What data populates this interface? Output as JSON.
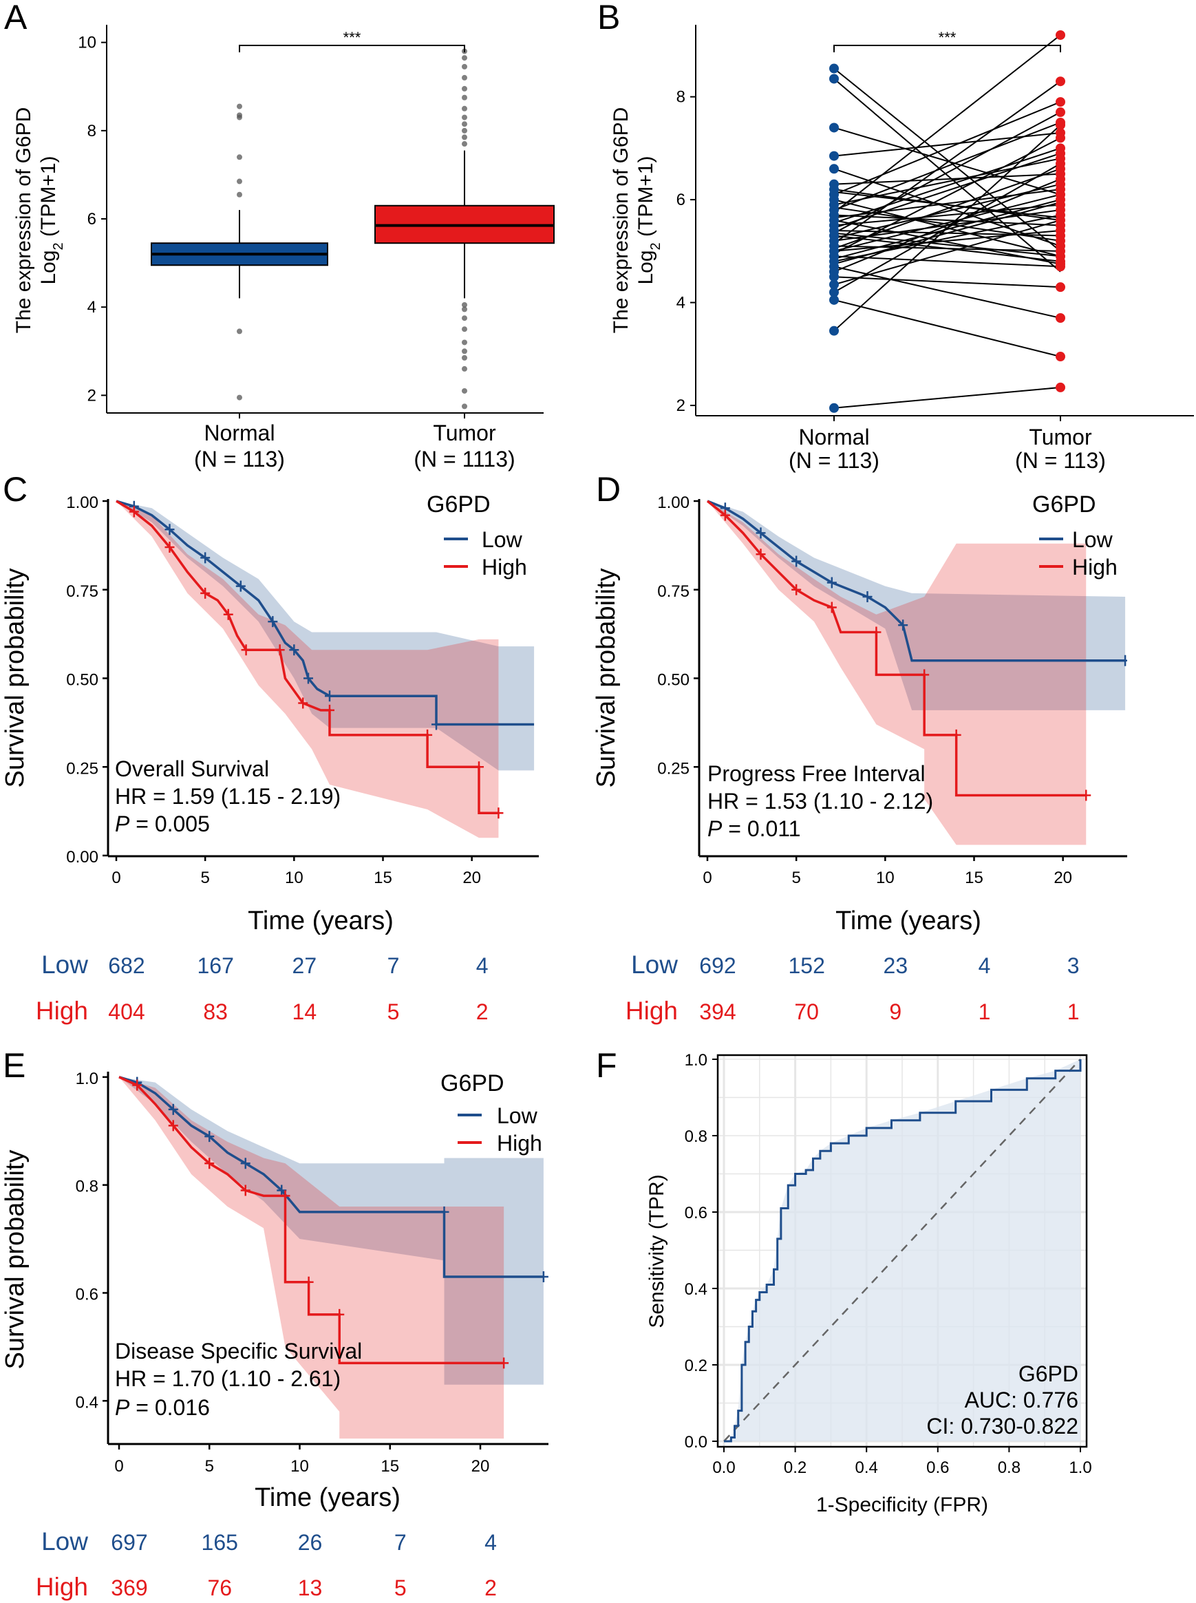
{
  "colors": {
    "normal_blue": "#0e4c92",
    "tumor_red": "#e41a1c",
    "low_blue": "#1f4e8c",
    "high_red": "#e41a1c",
    "roc_fill": "#dbe4ef",
    "axis": "#000000"
  },
  "panels": {
    "A": {
      "letter": "A"
    },
    "B": {
      "letter": "B"
    },
    "C": {
      "letter": "C"
    },
    "D": {
      "letter": "D"
    },
    "E": {
      "letter": "E"
    },
    "F": {
      "letter": "F"
    }
  },
  "chart_data": [
    {
      "id": "A",
      "type": "box",
      "ylabel_line1": "The expression of G6PD",
      "ylabel_line2": "Log2 (TPM+1)",
      "ylabel_line2_main": "Log",
      "ylabel_line2_sub": "2",
      "ylabel_line2_rest": " (TPM+1)",
      "ylim": [
        1.6,
        10.4
      ],
      "yticks": [
        "2",
        "4",
        "6",
        "8",
        "10"
      ],
      "significance": "***",
      "groups": [
        {
          "name": "Normal",
          "n_label": "(N = 113)",
          "q1": 4.95,
          "median": 5.2,
          "q3": 5.45,
          "whisker_low": 4.2,
          "whisker_high": 6.2,
          "outliers": [
            1.95,
            3.45,
            6.55,
            6.85,
            7.4,
            8.3,
            8.35,
            8.55
          ]
        },
        {
          "name": "Tumor",
          "n_label": "(N = 1113)",
          "q1": 5.45,
          "median": 5.85,
          "q3": 6.3,
          "whisker_low": 4.2,
          "whisker_high": 7.55,
          "outliers": [
            1.75,
            2.1,
            2.6,
            2.85,
            3.0,
            3.2,
            3.5,
            3.75,
            3.95,
            4.05,
            7.7,
            7.85,
            8.0,
            8.15,
            8.3,
            8.5,
            8.75,
            8.95,
            9.2,
            9.45,
            9.65,
            9.8
          ]
        }
      ]
    },
    {
      "id": "B",
      "type": "paired",
      "ylabel_line1": "The expression of G6PD",
      "ylabel_line2_main": "Log",
      "ylabel_line2_sub": "2",
      "ylabel_line2_rest": " (TPM+1)",
      "ylim": [
        1.8,
        9.4
      ],
      "yticks": [
        "2",
        "4",
        "6",
        "8"
      ],
      "significance": "***",
      "groups": [
        {
          "name": "Normal",
          "n_label": "(N = 113)"
        },
        {
          "name": "Tumor",
          "n_label": "(N = 113)"
        }
      ],
      "pairs": [
        [
          8.55,
          5.0
        ],
        [
          8.35,
          4.6
        ],
        [
          7.4,
          6.1
        ],
        [
          6.85,
          7.3
        ],
        [
          6.6,
          5.1
        ],
        [
          6.3,
          6.5
        ],
        [
          6.2,
          5.6
        ],
        [
          6.1,
          7.9
        ],
        [
          6.0,
          4.9
        ],
        [
          5.9,
          6.8
        ],
        [
          5.85,
          5.2
        ],
        [
          5.8,
          7.5
        ],
        [
          5.7,
          5.5
        ],
        [
          5.65,
          6.2
        ],
        [
          5.6,
          4.75
        ],
        [
          5.55,
          7.0
        ],
        [
          5.5,
          5.9
        ],
        [
          5.45,
          6.9
        ],
        [
          5.4,
          5.3
        ],
        [
          5.35,
          7.7
        ],
        [
          5.3,
          4.8
        ],
        [
          5.25,
          6.3
        ],
        [
          5.2,
          5.8
        ],
        [
          5.15,
          8.3
        ],
        [
          5.1,
          5.0
        ],
        [
          5.05,
          6.6
        ],
        [
          5.0,
          5.4
        ],
        [
          4.95,
          7.2
        ],
        [
          4.9,
          4.7
        ],
        [
          4.85,
          6.0
        ],
        [
          4.8,
          5.7
        ],
        [
          4.7,
          3.7
        ],
        [
          4.6,
          6.4
        ],
        [
          4.5,
          4.3
        ],
        [
          4.35,
          5.6
        ],
        [
          4.2,
          6.7
        ],
        [
          4.05,
          2.95
        ],
        [
          3.45,
          7.45
        ],
        [
          1.95,
          2.35
        ],
        [
          5.75,
          9.2
        ],
        [
          5.35,
          4.9
        ],
        [
          5.0,
          6.1
        ],
        [
          6.15,
          5.65
        ],
        [
          4.75,
          5.95
        ]
      ],
      "left_points": [
        8.55,
        8.35,
        7.4,
        6.85,
        6.6,
        6.3,
        6.2,
        6.1,
        6.0,
        5.9,
        5.8,
        5.7,
        5.6,
        5.5,
        5.4,
        5.3,
        5.2,
        5.1,
        5.0,
        4.9,
        4.8,
        4.7,
        4.6,
        4.5,
        4.35,
        4.2,
        4.05,
        3.45,
        1.95
      ],
      "right_points": [
        9.2,
        8.3,
        7.9,
        7.7,
        7.5,
        7.45,
        7.3,
        7.2,
        7.0,
        6.9,
        6.8,
        6.7,
        6.6,
        6.5,
        6.4,
        6.3,
        6.2,
        6.1,
        6.0,
        5.9,
        5.8,
        5.7,
        5.6,
        5.5,
        5.4,
        5.3,
        5.2,
        5.1,
        5.0,
        4.9,
        4.8,
        4.75,
        4.7,
        4.3,
        3.7,
        2.95,
        2.35
      ]
    },
    {
      "id": "C",
      "type": "km",
      "xlabel": "Time (years)",
      "ylabel": "Survival probability",
      "xlim": [
        0,
        24
      ],
      "ylim": [
        0,
        1
      ],
      "xticks": [
        "0",
        "5",
        "10",
        "15",
        "20"
      ],
      "yticks": [
        "0.00",
        "0.25",
        "0.50",
        "0.75",
        "1.00"
      ],
      "legend_title": "G6PD",
      "legend_items": [
        "Low",
        "High"
      ],
      "annotation": {
        "title": "Overall Survival",
        "hr": "HR = 1.59 (1.15 -  2.19)",
        "p_label": "P",
        "p_value": " = 0.005"
      },
      "low_curve": [
        [
          0,
          1
        ],
        [
          1,
          0.985
        ],
        [
          2,
          0.96
        ],
        [
          3,
          0.92
        ],
        [
          4,
          0.875
        ],
        [
          5,
          0.84
        ],
        [
          6,
          0.8
        ],
        [
          7,
          0.76
        ],
        [
          8,
          0.72
        ],
        [
          8.8,
          0.66
        ],
        [
          9.5,
          0.6
        ],
        [
          10,
          0.58
        ],
        [
          10.5,
          0.55
        ],
        [
          10.8,
          0.5
        ],
        [
          11.3,
          0.47
        ],
        [
          12,
          0.45
        ],
        [
          18,
          0.45
        ],
        [
          18,
          0.37
        ],
        [
          23.5,
          0.37
        ]
      ],
      "high_curve": [
        [
          0,
          1
        ],
        [
          1,
          0.97
        ],
        [
          2,
          0.93
        ],
        [
          3,
          0.87
        ],
        [
          4,
          0.8
        ],
        [
          5,
          0.74
        ],
        [
          5.7,
          0.72
        ],
        [
          6.3,
          0.68
        ],
        [
          6.8,
          0.62
        ],
        [
          7.3,
          0.58
        ],
        [
          8,
          0.58
        ],
        [
          9.2,
          0.58
        ],
        [
          9.5,
          0.5
        ],
        [
          10.5,
          0.43
        ],
        [
          11.5,
          0.41
        ],
        [
          12,
          0.41
        ],
        [
          12,
          0.34
        ],
        [
          17.5,
          0.34
        ],
        [
          17.5,
          0.25
        ],
        [
          20.4,
          0.25
        ],
        [
          20.4,
          0.12
        ],
        [
          21.5,
          0.12
        ]
      ],
      "low_band": [
        [
          0,
          1,
          1
        ],
        [
          2,
          0.98,
          0.94
        ],
        [
          4,
          0.91,
          0.84
        ],
        [
          6,
          0.84,
          0.76
        ],
        [
          8,
          0.78,
          0.66
        ],
        [
          10,
          0.66,
          0.5
        ],
        [
          11,
          0.63,
          0.4
        ],
        [
          12,
          0.63,
          0.36
        ],
        [
          18,
          0.63,
          0.36
        ],
        [
          21.5,
          0.59,
          0.24
        ],
        [
          23.5,
          0.59,
          0.24
        ]
      ],
      "high_band": [
        [
          0,
          1,
          1
        ],
        [
          2,
          0.96,
          0.9
        ],
        [
          4,
          0.85,
          0.74
        ],
        [
          6,
          0.78,
          0.64
        ],
        [
          8,
          0.68,
          0.48
        ],
        [
          9.5,
          0.65,
          0.4
        ],
        [
          11,
          0.58,
          0.3
        ],
        [
          12,
          0.58,
          0.2
        ],
        [
          17.5,
          0.58,
          0.13
        ],
        [
          20.4,
          0.61,
          0.05
        ],
        [
          21.5,
          0.61,
          0.05
        ]
      ],
      "risk_table": {
        "low_label": "Low",
        "high_label": "High",
        "low": [
          "682",
          "167",
          "27",
          "7",
          "4"
        ],
        "high": [
          "404",
          "83",
          "14",
          "5",
          "2"
        ]
      }
    },
    {
      "id": "D",
      "type": "km",
      "xlabel": "Time (years)",
      "ylabel": "Survival probability",
      "xlim": [
        0,
        24
      ],
      "ylim": [
        0,
        1
      ],
      "xticks": [
        "0",
        "5",
        "10",
        "15",
        "20"
      ],
      "yticks": [
        "0.25",
        "0.50",
        "0.75",
        "1.00"
      ],
      "legend_title": "G6PD",
      "legend_items": [
        "Low",
        "High"
      ],
      "annotation": {
        "title": "Progress Free Interval",
        "hr": "HR = 1.53 (1.10 -  2.12)",
        "p_label": "P",
        "p_value": " = 0.011"
      },
      "low_curve": [
        [
          0,
          1
        ],
        [
          1,
          0.98
        ],
        [
          2,
          0.95
        ],
        [
          3,
          0.91
        ],
        [
          4,
          0.87
        ],
        [
          5,
          0.83
        ],
        [
          6,
          0.8
        ],
        [
          7,
          0.77
        ],
        [
          8,
          0.75
        ],
        [
          9,
          0.73
        ],
        [
          10,
          0.7
        ],
        [
          11,
          0.65
        ],
        [
          11.5,
          0.55
        ],
        [
          23.5,
          0.55
        ]
      ],
      "high_curve": [
        [
          0,
          1
        ],
        [
          1,
          0.96
        ],
        [
          2,
          0.91
        ],
        [
          3,
          0.85
        ],
        [
          4,
          0.8
        ],
        [
          5,
          0.75
        ],
        [
          6,
          0.72
        ],
        [
          7,
          0.7
        ],
        [
          7.5,
          0.63
        ],
        [
          9.5,
          0.63
        ],
        [
          9.5,
          0.51
        ],
        [
          12.2,
          0.51
        ],
        [
          12.2,
          0.34
        ],
        [
          14,
          0.34
        ],
        [
          14,
          0.17
        ],
        [
          21.3,
          0.17
        ]
      ],
      "low_band": [
        [
          0,
          1,
          1
        ],
        [
          2,
          0.97,
          0.93
        ],
        [
          4,
          0.9,
          0.84
        ],
        [
          6,
          0.84,
          0.76
        ],
        [
          8,
          0.8,
          0.7
        ],
        [
          10,
          0.76,
          0.64
        ],
        [
          11.5,
          0.74,
          0.41
        ],
        [
          23.5,
          0.73,
          0.41
        ]
      ],
      "high_band": [
        [
          0,
          1,
          1
        ],
        [
          2,
          0.94,
          0.88
        ],
        [
          4,
          0.85,
          0.75
        ],
        [
          6,
          0.78,
          0.66
        ],
        [
          7.5,
          0.73,
          0.53
        ],
        [
          9.5,
          0.68,
          0.37
        ],
        [
          12.2,
          0.73,
          0.3
        ],
        [
          12.2,
          0.73,
          0.16
        ],
        [
          14,
          0.88,
          0.03
        ],
        [
          21.3,
          0.88,
          0.03
        ]
      ],
      "risk_table": {
        "low_label": "Low",
        "high_label": "High",
        "low": [
          "692",
          "152",
          "23",
          "4",
          "3"
        ],
        "high": [
          "394",
          "70",
          "9",
          "1",
          "1"
        ]
      }
    },
    {
      "id": "E",
      "type": "km",
      "xlabel": "Time (years)",
      "ylabel": "Survival probability",
      "xlim": [
        0,
        24
      ],
      "ylim": [
        0.32,
        1.01
      ],
      "xticks": [
        "0",
        "5",
        "10",
        "15",
        "20"
      ],
      "yticks": [
        "0.4",
        "0.6",
        "0.8",
        "1.0"
      ],
      "legend_title": "G6PD",
      "legend_items": [
        "Low",
        "High"
      ],
      "annotation": {
        "title": "Disease Specific Survival",
        "hr": "HR = 1.70 (1.10 -  2.61)",
        "p_label": "P",
        "p_value": " = 0.016"
      },
      "low_curve": [
        [
          0,
          1
        ],
        [
          1,
          0.99
        ],
        [
          2,
          0.97
        ],
        [
          3,
          0.94
        ],
        [
          4,
          0.91
        ],
        [
          5,
          0.89
        ],
        [
          6,
          0.86
        ],
        [
          7,
          0.84
        ],
        [
          8,
          0.82
        ],
        [
          9,
          0.79
        ],
        [
          10,
          0.75
        ],
        [
          18,
          0.75
        ],
        [
          18,
          0.63
        ],
        [
          23.5,
          0.63
        ]
      ],
      "high_curve": [
        [
          0,
          1
        ],
        [
          1,
          0.985
        ],
        [
          2,
          0.95
        ],
        [
          3,
          0.91
        ],
        [
          4,
          0.87
        ],
        [
          5,
          0.84
        ],
        [
          6,
          0.82
        ],
        [
          7,
          0.79
        ],
        [
          8,
          0.78
        ],
        [
          9.2,
          0.78
        ],
        [
          9.2,
          0.62
        ],
        [
          10.5,
          0.62
        ],
        [
          10.5,
          0.56
        ],
        [
          12.2,
          0.56
        ],
        [
          12.2,
          0.47
        ],
        [
          21.3,
          0.47
        ]
      ],
      "low_band": [
        [
          0,
          1,
          1
        ],
        [
          2,
          0.99,
          0.95
        ],
        [
          4,
          0.94,
          0.88
        ],
        [
          6,
          0.9,
          0.82
        ],
        [
          8,
          0.87,
          0.77
        ],
        [
          10,
          0.84,
          0.7
        ],
        [
          18,
          0.84,
          0.66
        ],
        [
          18,
          0.85,
          0.43
        ],
        [
          23.5,
          0.85,
          0.43
        ]
      ],
      "high_band": [
        [
          0,
          1,
          1
        ],
        [
          2,
          0.98,
          0.92
        ],
        [
          4,
          0.92,
          0.82
        ],
        [
          6,
          0.88,
          0.76
        ],
        [
          8,
          0.85,
          0.72
        ],
        [
          9.2,
          0.84,
          0.5
        ],
        [
          12.2,
          0.76,
          0.38
        ],
        [
          12.2,
          0.76,
          0.33
        ],
        [
          21.3,
          0.76,
          0.33
        ]
      ],
      "risk_table": {
        "low_label": "Low",
        "high_label": "High",
        "low": [
          "697",
          "165",
          "26",
          "7",
          "4"
        ],
        "high": [
          "369",
          "76",
          "13",
          "5",
          "2"
        ]
      }
    },
    {
      "id": "F",
      "type": "roc",
      "xlabel": "1-Specificity (FPR)",
      "ylabel": "Sensitivity (TPR)",
      "xlim": [
        0,
        1
      ],
      "ylim": [
        0,
        1
      ],
      "xticks": [
        "0.0",
        "0.2",
        "0.4",
        "0.6",
        "0.8",
        "1.0"
      ],
      "yticks": [
        "0.0",
        "0.2",
        "0.4",
        "0.6",
        "0.8",
        "1.0"
      ],
      "gene": "G6PD",
      "auc": "AUC: 0.776",
      "ci": "CI: 0.730-0.822",
      "roc": [
        [
          0,
          0
        ],
        [
          0.01,
          0.0
        ],
        [
          0.02,
          0.01
        ],
        [
          0.03,
          0.04
        ],
        [
          0.04,
          0.08
        ],
        [
          0.05,
          0.2
        ],
        [
          0.06,
          0.26
        ],
        [
          0.07,
          0.3
        ],
        [
          0.08,
          0.34
        ],
        [
          0.09,
          0.37
        ],
        [
          0.1,
          0.39
        ],
        [
          0.12,
          0.41
        ],
        [
          0.14,
          0.45
        ],
        [
          0.15,
          0.53
        ],
        [
          0.16,
          0.61
        ],
        [
          0.18,
          0.67
        ],
        [
          0.2,
          0.7
        ],
        [
          0.23,
          0.71
        ],
        [
          0.25,
          0.74
        ],
        [
          0.27,
          0.76
        ],
        [
          0.3,
          0.78
        ],
        [
          0.35,
          0.8
        ],
        [
          0.4,
          0.82
        ],
        [
          0.47,
          0.84
        ],
        [
          0.55,
          0.86
        ],
        [
          0.65,
          0.89
        ],
        [
          0.75,
          0.92
        ],
        [
          0.85,
          0.95
        ],
        [
          0.93,
          0.97
        ],
        [
          1,
          1
        ]
      ]
    }
  ]
}
